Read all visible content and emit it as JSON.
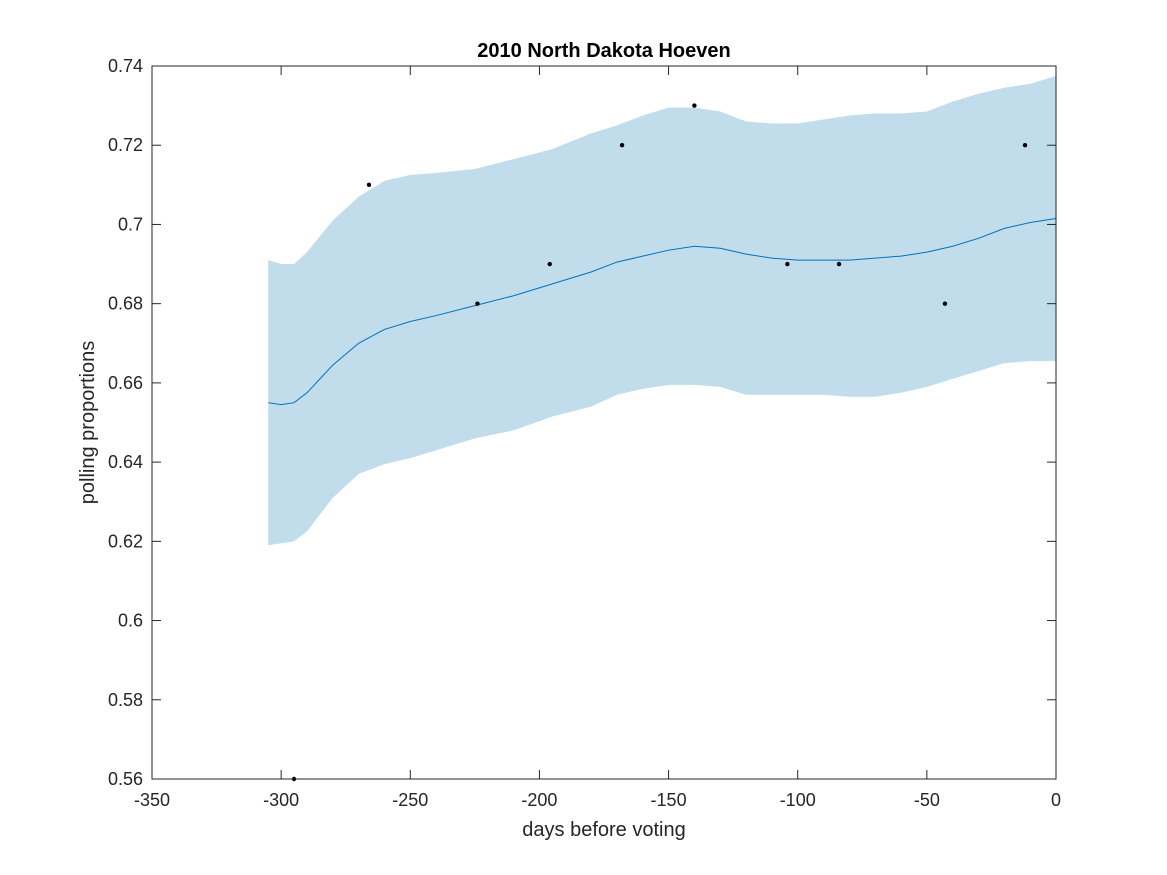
{
  "chart_data": {
    "type": "line",
    "title": "2010 North Dakota Hoeven",
    "xlabel": "days before voting",
    "ylabel": "polling proportions",
    "xlim": [
      -350,
      0
    ],
    "ylim": [
      0.56,
      0.74
    ],
    "xticks": [
      -350,
      -300,
      -250,
      -200,
      -150,
      -100,
      -50,
      0
    ],
    "xtick_labels": [
      "-350",
      "-300",
      "-250",
      "-200",
      "-150",
      "-100",
      "-50",
      "0"
    ],
    "yticks": [
      0.56,
      0.58,
      0.6,
      0.62,
      0.64,
      0.66,
      0.68,
      0.7,
      0.72,
      0.74
    ],
    "ytick_labels": [
      "0.56",
      "0.58",
      "0.6",
      "0.62",
      "0.64",
      "0.66",
      "0.68",
      "0.7",
      "0.72",
      "0.74"
    ],
    "grid": false,
    "band": {
      "x": [
        -305,
        -300,
        -295,
        -290,
        -280,
        -270,
        -260,
        -250,
        -240,
        -225,
        -210,
        -195,
        -180,
        -170,
        -160,
        -150,
        -140,
        -130,
        -120,
        -110,
        -100,
        -90,
        -80,
        -70,
        -60,
        -50,
        -40,
        -30,
        -20,
        -10,
        0
      ],
      "upper": [
        0.691,
        0.69,
        0.69,
        0.693,
        0.701,
        0.707,
        0.711,
        0.7125,
        0.713,
        0.714,
        0.7165,
        0.719,
        0.723,
        0.725,
        0.7275,
        0.7295,
        0.7295,
        0.7285,
        0.726,
        0.7255,
        0.7255,
        0.7265,
        0.7275,
        0.728,
        0.728,
        0.7285,
        0.731,
        0.733,
        0.7345,
        0.7355,
        0.7375
      ],
      "lower": [
        0.619,
        0.6195,
        0.62,
        0.6225,
        0.631,
        0.637,
        0.6395,
        0.641,
        0.643,
        0.646,
        0.648,
        0.6515,
        0.654,
        0.657,
        0.6585,
        0.6595,
        0.6595,
        0.659,
        0.657,
        0.657,
        0.657,
        0.657,
        0.6565,
        0.6565,
        0.6575,
        0.659,
        0.661,
        0.663,
        0.665,
        0.6655,
        0.6655
      ],
      "color": "#c1dcea"
    },
    "series": [
      {
        "x": [
          -305,
          -300,
          -295,
          -290,
          -280,
          -270,
          -260,
          -250,
          -240,
          -225,
          -210,
          -195,
          -180,
          -170,
          -160,
          -150,
          -140,
          -130,
          -120,
          -110,
          -100,
          -90,
          -80,
          -70,
          -60,
          -50,
          -40,
          -30,
          -20,
          -10,
          0
        ],
        "y": [
          0.655,
          0.6545,
          0.655,
          0.6575,
          0.6645,
          0.67,
          0.6735,
          0.6755,
          0.677,
          0.6795,
          0.682,
          0.685,
          0.688,
          0.6905,
          0.692,
          0.6935,
          0.6945,
          0.694,
          0.6925,
          0.6915,
          0.691,
          0.691,
          0.691,
          0.6915,
          0.692,
          0.693,
          0.6945,
          0.6965,
          0.699,
          0.7005,
          0.7015
        ],
        "color": "#0072bd"
      }
    ],
    "points": {
      "x": [
        -295,
        -266,
        -224,
        -196,
        -168,
        -140,
        -104,
        -84,
        -43,
        -12
      ],
      "y": [
        0.56,
        0.71,
        0.68,
        0.69,
        0.72,
        0.73,
        0.69,
        0.69,
        0.68,
        0.72
      ],
      "color": "#000000"
    }
  }
}
